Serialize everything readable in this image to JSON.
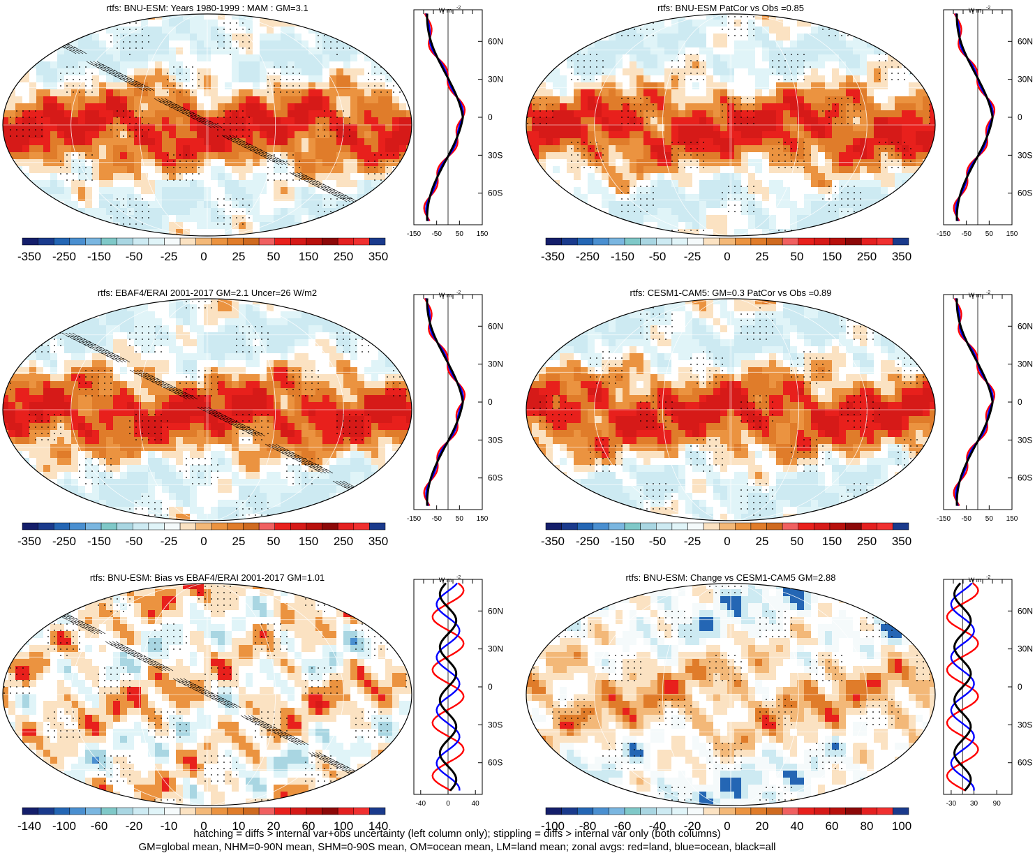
{
  "palette": {
    "neg": [
      "#141e6a",
      "#1a3a8c",
      "#2466b4",
      "#4a8fd0",
      "#7ab6e0",
      "#7fc8c8",
      "#a9d6e2",
      "#cdeaf2",
      "#e0f4f8",
      "#f5fafb"
    ],
    "pos": [
      "#fbe2c2",
      "#f3b878",
      "#eb9340",
      "#e07c2a",
      "#cf6a20",
      "#f06060",
      "#e8201c",
      "#d61a18",
      "#b8100c",
      "#8c0808",
      "#e42020",
      "#f03030",
      "#e02020"
    ],
    "end_pos": "#1a3a8c",
    "land_red": "#ff0000",
    "ocean_blue": "#0000ff",
    "all_black": "#000000"
  },
  "lat_labels": [
    "60N",
    "30N",
    "0",
    "30S",
    "60S"
  ],
  "profile_unit": "W m",
  "profile_unit_sup": "-2",
  "panels": [
    {
      "title": "rtfs: BNU-ESM: Years 1980-1999 : MAM : GM=3.1",
      "colorbar_labels": [
        "-350",
        "-250",
        "-150",
        "-50",
        "-25",
        "0",
        "25",
        "50",
        "150",
        "250",
        "350"
      ],
      "profile_ticks": [
        "-150",
        "-50",
        "50",
        "150"
      ],
      "profile_xlim": [
        -150,
        150
      ],
      "hatching": true,
      "stippling": true,
      "style": "warm"
    },
    {
      "title": "rtfs: BNU-ESM PatCor vs Obs =0.85",
      "colorbar_labels": [
        "-350",
        "-250",
        "-150",
        "-50",
        "-25",
        "0",
        "25",
        "50",
        "150",
        "250",
        "350"
      ],
      "profile_ticks": [
        "-150",
        "-50",
        "50",
        "150"
      ],
      "profile_xlim": [
        -150,
        150
      ],
      "hatching": false,
      "stippling": true,
      "style": "warm"
    },
    {
      "title": "rtfs: EBAF4/ERAI 2001-2017 GM=2.1 Uncer=26 W/m2",
      "colorbar_labels": [
        "-350",
        "-250",
        "-150",
        "-50",
        "-25",
        "0",
        "25",
        "50",
        "150",
        "250",
        "350"
      ],
      "profile_ticks": [
        "-150",
        "-50",
        "50",
        "150"
      ],
      "profile_xlim": [
        -150,
        150
      ],
      "hatching": true,
      "stippling": true,
      "style": "warm"
    },
    {
      "title": "rtfs: CESM1-CAM5: GM=0.3 PatCor vs Obs =0.89",
      "colorbar_labels": [
        "-350",
        "-250",
        "-150",
        "-50",
        "-25",
        "0",
        "25",
        "50",
        "150",
        "250",
        "350"
      ],
      "profile_ticks": [
        "-150",
        "-50",
        "50",
        "150"
      ],
      "profile_xlim": [
        -150,
        150
      ],
      "hatching": false,
      "stippling": true,
      "style": "warm"
    },
    {
      "title": "rtfs: BNU-ESM: Bias vs EBAF4/ERAI 2001-2017 GM=1.01",
      "colorbar_labels": [
        "-140",
        "-100",
        "-60",
        "-20",
        "-10",
        "0",
        "10",
        "20",
        "60",
        "100",
        "140"
      ],
      "profile_ticks": [
        "-40",
        "0",
        "40"
      ],
      "profile_xlim": [
        -50,
        50
      ],
      "hatching": true,
      "stippling": true,
      "style": "bias"
    },
    {
      "title": "rtfs: BNU-ESM: Change vs CESM1-CAM5 GM=2.88",
      "colorbar_labels": [
        "-100",
        "-80",
        "-60",
        "-40",
        "-20",
        "0",
        "20",
        "40",
        "60",
        "80",
        "100"
      ],
      "profile_ticks": [
        "-30",
        "30",
        "90"
      ],
      "profile_xlim": [
        -50,
        130
      ],
      "hatching": false,
      "stippling": true,
      "style": "change"
    }
  ],
  "footnote": {
    "line1": "hatching = diffs > internal var+obs uncertainty (left column only); stippling = diffs > internal var only (both columns)",
    "line2": "GM=global mean, NHM=0-90N mean, SHM=0-90S mean, OM=ocean mean, LM=land mean; zonal avgs: red=land, blue=ocean, black=all"
  }
}
